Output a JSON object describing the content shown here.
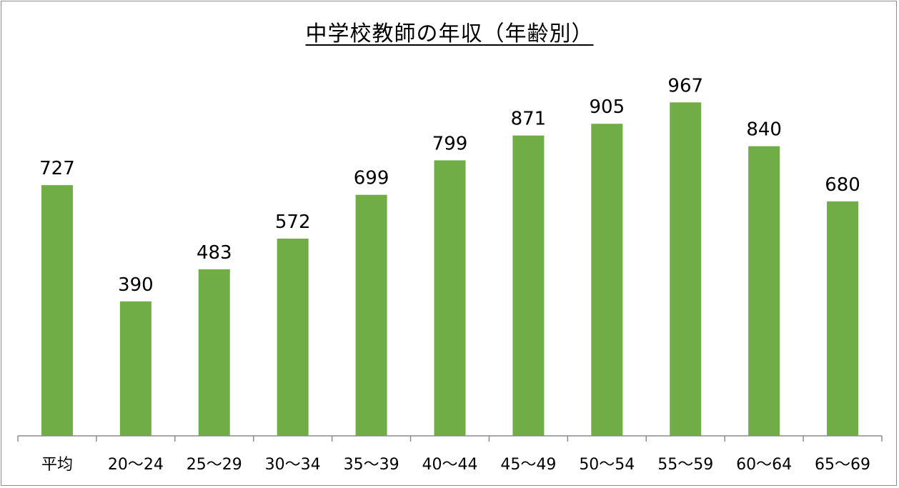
{
  "chart_data": {
    "type": "bar",
    "title": "中学校教師の年収（年齢別）",
    "categories": [
      "平均",
      "20～24",
      "25～29",
      "30～34",
      "35～39",
      "40～44",
      "45～49",
      "50～54",
      "55～59",
      "60～64",
      "65～69"
    ],
    "values": [
      727,
      390,
      483,
      572,
      699,
      799,
      871,
      905,
      967,
      840,
      680
    ],
    "xlabel": "",
    "ylabel": "",
    "ylim": [
      0,
      1150
    ],
    "grid": false,
    "legend": "none",
    "bar_color": "#70ad47",
    "axis_color": "#8c8c8c"
  }
}
